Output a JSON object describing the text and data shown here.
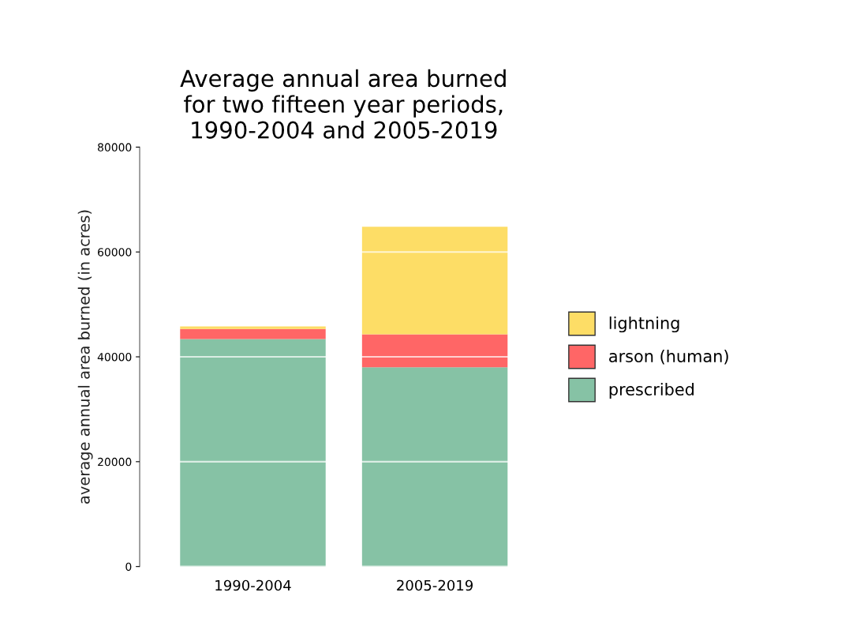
{
  "chart_data": {
    "type": "bar",
    "title": "Average annual area burned\nfor two fifteen year periods,\n1990-2004 and 2005-2019",
    "ylabel": "average annual area burned (in acres)",
    "categories": [
      "1990-2004",
      "2005-2019"
    ],
    "stacked": true,
    "series": [
      {
        "name": "prescribed",
        "color": "#86c2a5",
        "values": [
          43400,
          38000
        ]
      },
      {
        "name": "arson (human)",
        "color": "#ff6666",
        "values": [
          1900,
          6300
        ]
      },
      {
        "name": "lightning",
        "color": "#fddd66",
        "values": [
          500,
          20500
        ]
      }
    ],
    "ylim": [
      0,
      80000
    ],
    "yticks": [
      0,
      20000,
      40000,
      60000,
      80000
    ],
    "grid": "y",
    "legend": "right"
  }
}
